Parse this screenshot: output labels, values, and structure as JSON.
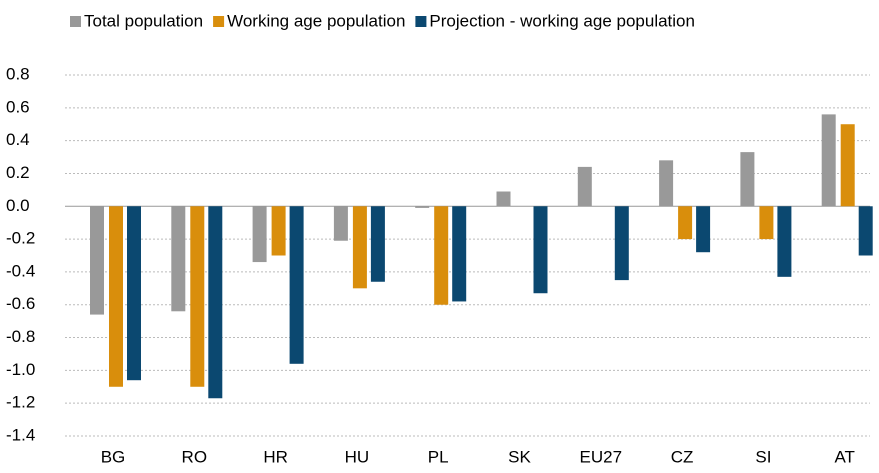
{
  "chart_data": {
    "type": "bar",
    "categories": [
      "BG",
      "RO",
      "HR",
      "HU",
      "PL",
      "SK",
      "EU27",
      "CZ",
      "SI",
      "AT"
    ],
    "series": [
      {
        "name": "Total population",
        "color": "#999999",
        "values": [
          -0.66,
          -0.64,
          -0.34,
          -0.21,
          -0.01,
          0.09,
          0.24,
          0.28,
          0.33,
          0.56
        ]
      },
      {
        "name": "Working age population",
        "color": "#d98e0c",
        "values": [
          -1.1,
          -1.1,
          -0.3,
          -0.5,
          -0.6,
          null,
          null,
          -0.2,
          -0.2,
          0.5
        ]
      },
      {
        "name": "Projection - working age population",
        "color": "#0b4870",
        "values": [
          -1.06,
          -1.17,
          -0.96,
          -0.46,
          -0.58,
          -0.53,
          -0.45,
          -0.28,
          -0.43,
          -0.3
        ]
      }
    ],
    "ylim": [
      -1.4,
      0.8
    ],
    "yticks": [
      -1.4,
      -1.2,
      {
        "value": -1,
        "label": "-1.0"
      },
      -0.8,
      -0.6,
      -0.4,
      -0.2,
      {
        "value": 0,
        "label": "0.0"
      },
      0.2,
      0.4,
      0.6,
      0.8
    ],
    "grid": true,
    "legend": "top"
  }
}
